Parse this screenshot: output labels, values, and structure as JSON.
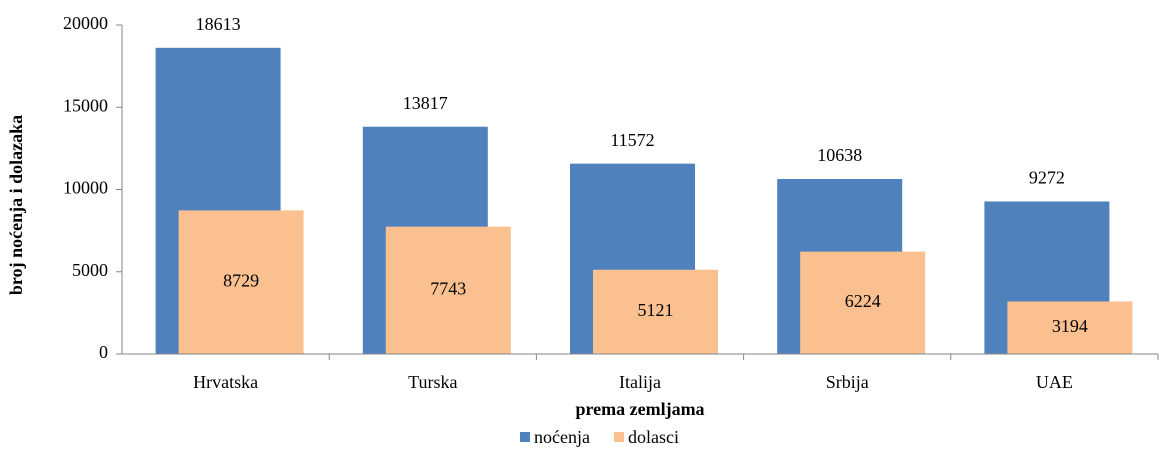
{
  "chart_data": {
    "type": "bar",
    "categories": [
      "Hrvatska",
      "Turska",
      "Italija",
      "Srbija",
      "UAE"
    ],
    "series": [
      {
        "name": "noćenja",
        "color": "#4f81bd",
        "values": [
          18613,
          13817,
          11572,
          10638,
          9272
        ]
      },
      {
        "name": "dolasci",
        "color": "#fac090",
        "values": [
          8729,
          7743,
          5121,
          6224,
          3194
        ]
      }
    ],
    "ylim": [
      0,
      20000
    ],
    "yticks": [
      0,
      5000,
      10000,
      15000,
      20000
    ],
    "y_label": "broj noćenja i dolazaka",
    "x_label": "prema zemljama",
    "legend": "bottom",
    "grid": false
  }
}
